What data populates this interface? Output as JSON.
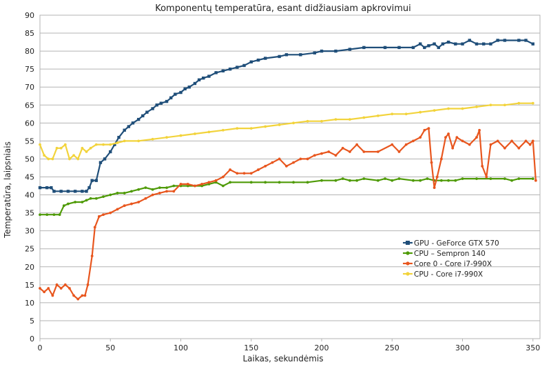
{
  "chart_data": {
    "type": "line",
    "title": "Komponentų temperatūra, esant didžiausiam apkrovimui",
    "xlabel": "Laikas, sekundėmis",
    "ylabel": "Temperatūra, laipsniais",
    "xlim": [
      0,
      355
    ],
    "ylim": [
      0,
      90
    ],
    "xticks": [
      "0",
      "50",
      "100",
      "150",
      "200",
      "250",
      "300",
      "350"
    ],
    "yticks": [
      "0",
      "5",
      "10",
      "15",
      "20",
      "25",
      "30",
      "35",
      "40",
      "45",
      "50",
      "55",
      "60",
      "65",
      "70",
      "75",
      "80",
      "85",
      "90"
    ],
    "grid": true,
    "legend_position": "right-middle",
    "series": [
      {
        "name": "GPU - GeForce GTX 570",
        "color": "#1f4e79",
        "marker": "square",
        "points": [
          [
            0,
            42
          ],
          [
            5,
            42
          ],
          [
            8,
            42
          ],
          [
            10,
            41
          ],
          [
            15,
            41
          ],
          [
            20,
            41
          ],
          [
            25,
            41
          ],
          [
            30,
            41
          ],
          [
            33,
            41
          ],
          [
            35,
            42
          ],
          [
            37,
            44
          ],
          [
            40,
            44
          ],
          [
            43,
            49
          ],
          [
            46,
            50
          ],
          [
            50,
            52
          ],
          [
            53,
            54
          ],
          [
            56,
            56
          ],
          [
            60,
            58
          ],
          [
            63,
            59
          ],
          [
            66,
            60
          ],
          [
            70,
            61
          ],
          [
            73,
            62
          ],
          [
            76,
            63
          ],
          [
            80,
            64
          ],
          [
            83,
            65
          ],
          [
            86,
            65.5
          ],
          [
            90,
            66
          ],
          [
            93,
            67
          ],
          [
            96,
            68
          ],
          [
            100,
            68.5
          ],
          [
            103,
            69.5
          ],
          [
            106,
            70
          ],
          [
            110,
            71
          ],
          [
            113,
            72
          ],
          [
            116,
            72.5
          ],
          [
            120,
            73
          ],
          [
            125,
            74
          ],
          [
            130,
            74.5
          ],
          [
            135,
            75
          ],
          [
            140,
            75.5
          ],
          [
            145,
            76
          ],
          [
            150,
            77
          ],
          [
            155,
            77.5
          ],
          [
            160,
            78
          ],
          [
            170,
            78.5
          ],
          [
            175,
            79
          ],
          [
            185,
            79
          ],
          [
            195,
            79.5
          ],
          [
            200,
            80
          ],
          [
            210,
            80
          ],
          [
            220,
            80.5
          ],
          [
            230,
            81
          ],
          [
            245,
            81
          ],
          [
            255,
            81
          ],
          [
            265,
            81
          ],
          [
            270,
            82
          ],
          [
            273,
            81
          ],
          [
            276,
            81.5
          ],
          [
            280,
            82
          ],
          [
            283,
            81
          ],
          [
            286,
            82
          ],
          [
            290,
            82.5
          ],
          [
            295,
            82
          ],
          [
            300,
            82
          ],
          [
            305,
            83
          ],
          [
            310,
            82
          ],
          [
            315,
            82
          ],
          [
            320,
            82
          ],
          [
            325,
            83
          ],
          [
            330,
            83
          ],
          [
            340,
            83
          ],
          [
            345,
            83
          ],
          [
            350,
            82
          ]
        ]
      },
      {
        "name": "CPU – Sempron 140",
        "color": "#4e9a06",
        "marker": "circle",
        "points": [
          [
            0,
            34.5
          ],
          [
            5,
            34.5
          ],
          [
            10,
            34.5
          ],
          [
            14,
            34.5
          ],
          [
            17,
            37
          ],
          [
            20,
            37.5
          ],
          [
            25,
            38
          ],
          [
            30,
            38
          ],
          [
            33,
            38.5
          ],
          [
            36,
            39
          ],
          [
            40,
            39
          ],
          [
            45,
            39.5
          ],
          [
            50,
            40
          ],
          [
            55,
            40.5
          ],
          [
            60,
            40.5
          ],
          [
            65,
            41
          ],
          [
            70,
            41.5
          ],
          [
            75,
            42
          ],
          [
            80,
            41.5
          ],
          [
            85,
            42
          ],
          [
            90,
            42
          ],
          [
            95,
            42.5
          ],
          [
            100,
            42.5
          ],
          [
            105,
            42.5
          ],
          [
            110,
            42.5
          ],
          [
            115,
            42.5
          ],
          [
            120,
            43
          ],
          [
            125,
            43.5
          ],
          [
            130,
            42.5
          ],
          [
            135,
            43.5
          ],
          [
            150,
            43.5
          ],
          [
            160,
            43.5
          ],
          [
            170,
            43.5
          ],
          [
            180,
            43.5
          ],
          [
            190,
            43.5
          ],
          [
            200,
            44
          ],
          [
            210,
            44
          ],
          [
            215,
            44.5
          ],
          [
            220,
            44
          ],
          [
            225,
            44
          ],
          [
            230,
            44.5
          ],
          [
            240,
            44
          ],
          [
            245,
            44.5
          ],
          [
            250,
            44
          ],
          [
            255,
            44.5
          ],
          [
            265,
            44
          ],
          [
            270,
            44
          ],
          [
            275,
            44.5
          ],
          [
            280,
            44
          ],
          [
            285,
            44
          ],
          [
            290,
            44
          ],
          [
            295,
            44
          ],
          [
            300,
            44.5
          ],
          [
            310,
            44.5
          ],
          [
            320,
            44.5
          ],
          [
            330,
            44.5
          ],
          [
            335,
            44
          ],
          [
            340,
            44.5
          ],
          [
            350,
            44.5
          ]
        ]
      },
      {
        "name": "Core 0 - Core i7-990X",
        "color": "#e8561e",
        "marker": "circle",
        "points": [
          [
            0,
            14
          ],
          [
            3,
            13
          ],
          [
            6,
            14
          ],
          [
            9,
            12
          ],
          [
            12,
            15
          ],
          [
            15,
            14
          ],
          [
            18,
            15
          ],
          [
            21,
            14
          ],
          [
            24,
            12
          ],
          [
            27,
            11
          ],
          [
            30,
            12
          ],
          [
            32,
            12
          ],
          [
            34,
            15
          ],
          [
            37,
            23
          ],
          [
            39,
            31
          ],
          [
            42,
            34
          ],
          [
            45,
            34.5
          ],
          [
            50,
            35
          ],
          [
            55,
            36
          ],
          [
            60,
            37
          ],
          [
            65,
            37.5
          ],
          [
            70,
            38
          ],
          [
            75,
            39
          ],
          [
            80,
            40
          ],
          [
            85,
            40.5
          ],
          [
            90,
            41
          ],
          [
            95,
            41
          ],
          [
            100,
            43
          ],
          [
            105,
            43
          ],
          [
            110,
            42.5
          ],
          [
            115,
            43
          ],
          [
            120,
            43.5
          ],
          [
            125,
            44
          ],
          [
            130,
            45
          ],
          [
            135,
            47
          ],
          [
            140,
            46
          ],
          [
            145,
            46
          ],
          [
            150,
            46
          ],
          [
            155,
            47
          ],
          [
            160,
            48
          ],
          [
            165,
            49
          ],
          [
            170,
            50
          ],
          [
            175,
            48
          ],
          [
            180,
            49
          ],
          [
            185,
            50
          ],
          [
            190,
            50
          ],
          [
            195,
            51
          ],
          [
            200,
            51.5
          ],
          [
            205,
            52
          ],
          [
            210,
            51
          ],
          [
            215,
            53
          ],
          [
            220,
            52
          ],
          [
            225,
            54
          ],
          [
            230,
            52
          ],
          [
            240,
            52
          ],
          [
            250,
            54
          ],
          [
            255,
            52
          ],
          [
            260,
            54
          ],
          [
            265,
            55
          ],
          [
            270,
            56
          ],
          [
            273,
            58
          ],
          [
            276,
            58.5
          ],
          [
            278,
            49
          ],
          [
            280,
            42
          ],
          [
            282,
            45
          ],
          [
            285,
            50
          ],
          [
            288,
            56
          ],
          [
            290,
            57
          ],
          [
            293,
            53
          ],
          [
            296,
            56
          ],
          [
            300,
            55
          ],
          [
            305,
            54
          ],
          [
            310,
            56
          ],
          [
            312,
            58
          ],
          [
            314,
            48
          ],
          [
            317,
            45
          ],
          [
            320,
            54
          ],
          [
            325,
            55
          ],
          [
            330,
            53
          ],
          [
            335,
            55
          ],
          [
            340,
            53
          ],
          [
            345,
            55
          ],
          [
            348,
            54
          ],
          [
            350,
            55
          ],
          [
            352,
            44
          ]
        ]
      },
      {
        "name": "CPU - Core i7-990X",
        "color": "#f2d33b",
        "marker": "circle",
        "points": [
          [
            0,
            54
          ],
          [
            3,
            51
          ],
          [
            6,
            50
          ],
          [
            9,
            50
          ],
          [
            12,
            53
          ],
          [
            15,
            53
          ],
          [
            18,
            54
          ],
          [
            21,
            50
          ],
          [
            24,
            51
          ],
          [
            27,
            50
          ],
          [
            30,
            53
          ],
          [
            33,
            52
          ],
          [
            36,
            53
          ],
          [
            40,
            54
          ],
          [
            45,
            54
          ],
          [
            50,
            54
          ],
          [
            55,
            54.5
          ],
          [
            60,
            55
          ],
          [
            70,
            55
          ],
          [
            80,
            55.5
          ],
          [
            90,
            56
          ],
          [
            100,
            56.5
          ],
          [
            110,
            57
          ],
          [
            120,
            57.5
          ],
          [
            130,
            58
          ],
          [
            140,
            58.5
          ],
          [
            150,
            58.5
          ],
          [
            160,
            59
          ],
          [
            170,
            59.5
          ],
          [
            180,
            60
          ],
          [
            190,
            60.5
          ],
          [
            200,
            60.5
          ],
          [
            210,
            61
          ],
          [
            220,
            61
          ],
          [
            230,
            61.5
          ],
          [
            240,
            62
          ],
          [
            250,
            62.5
          ],
          [
            260,
            62.5
          ],
          [
            270,
            63
          ],
          [
            280,
            63.5
          ],
          [
            290,
            64
          ],
          [
            300,
            64
          ],
          [
            310,
            64.5
          ],
          [
            320,
            65
          ],
          [
            330,
            65
          ],
          [
            340,
            65.5
          ],
          [
            350,
            65.5
          ]
        ]
      }
    ]
  }
}
